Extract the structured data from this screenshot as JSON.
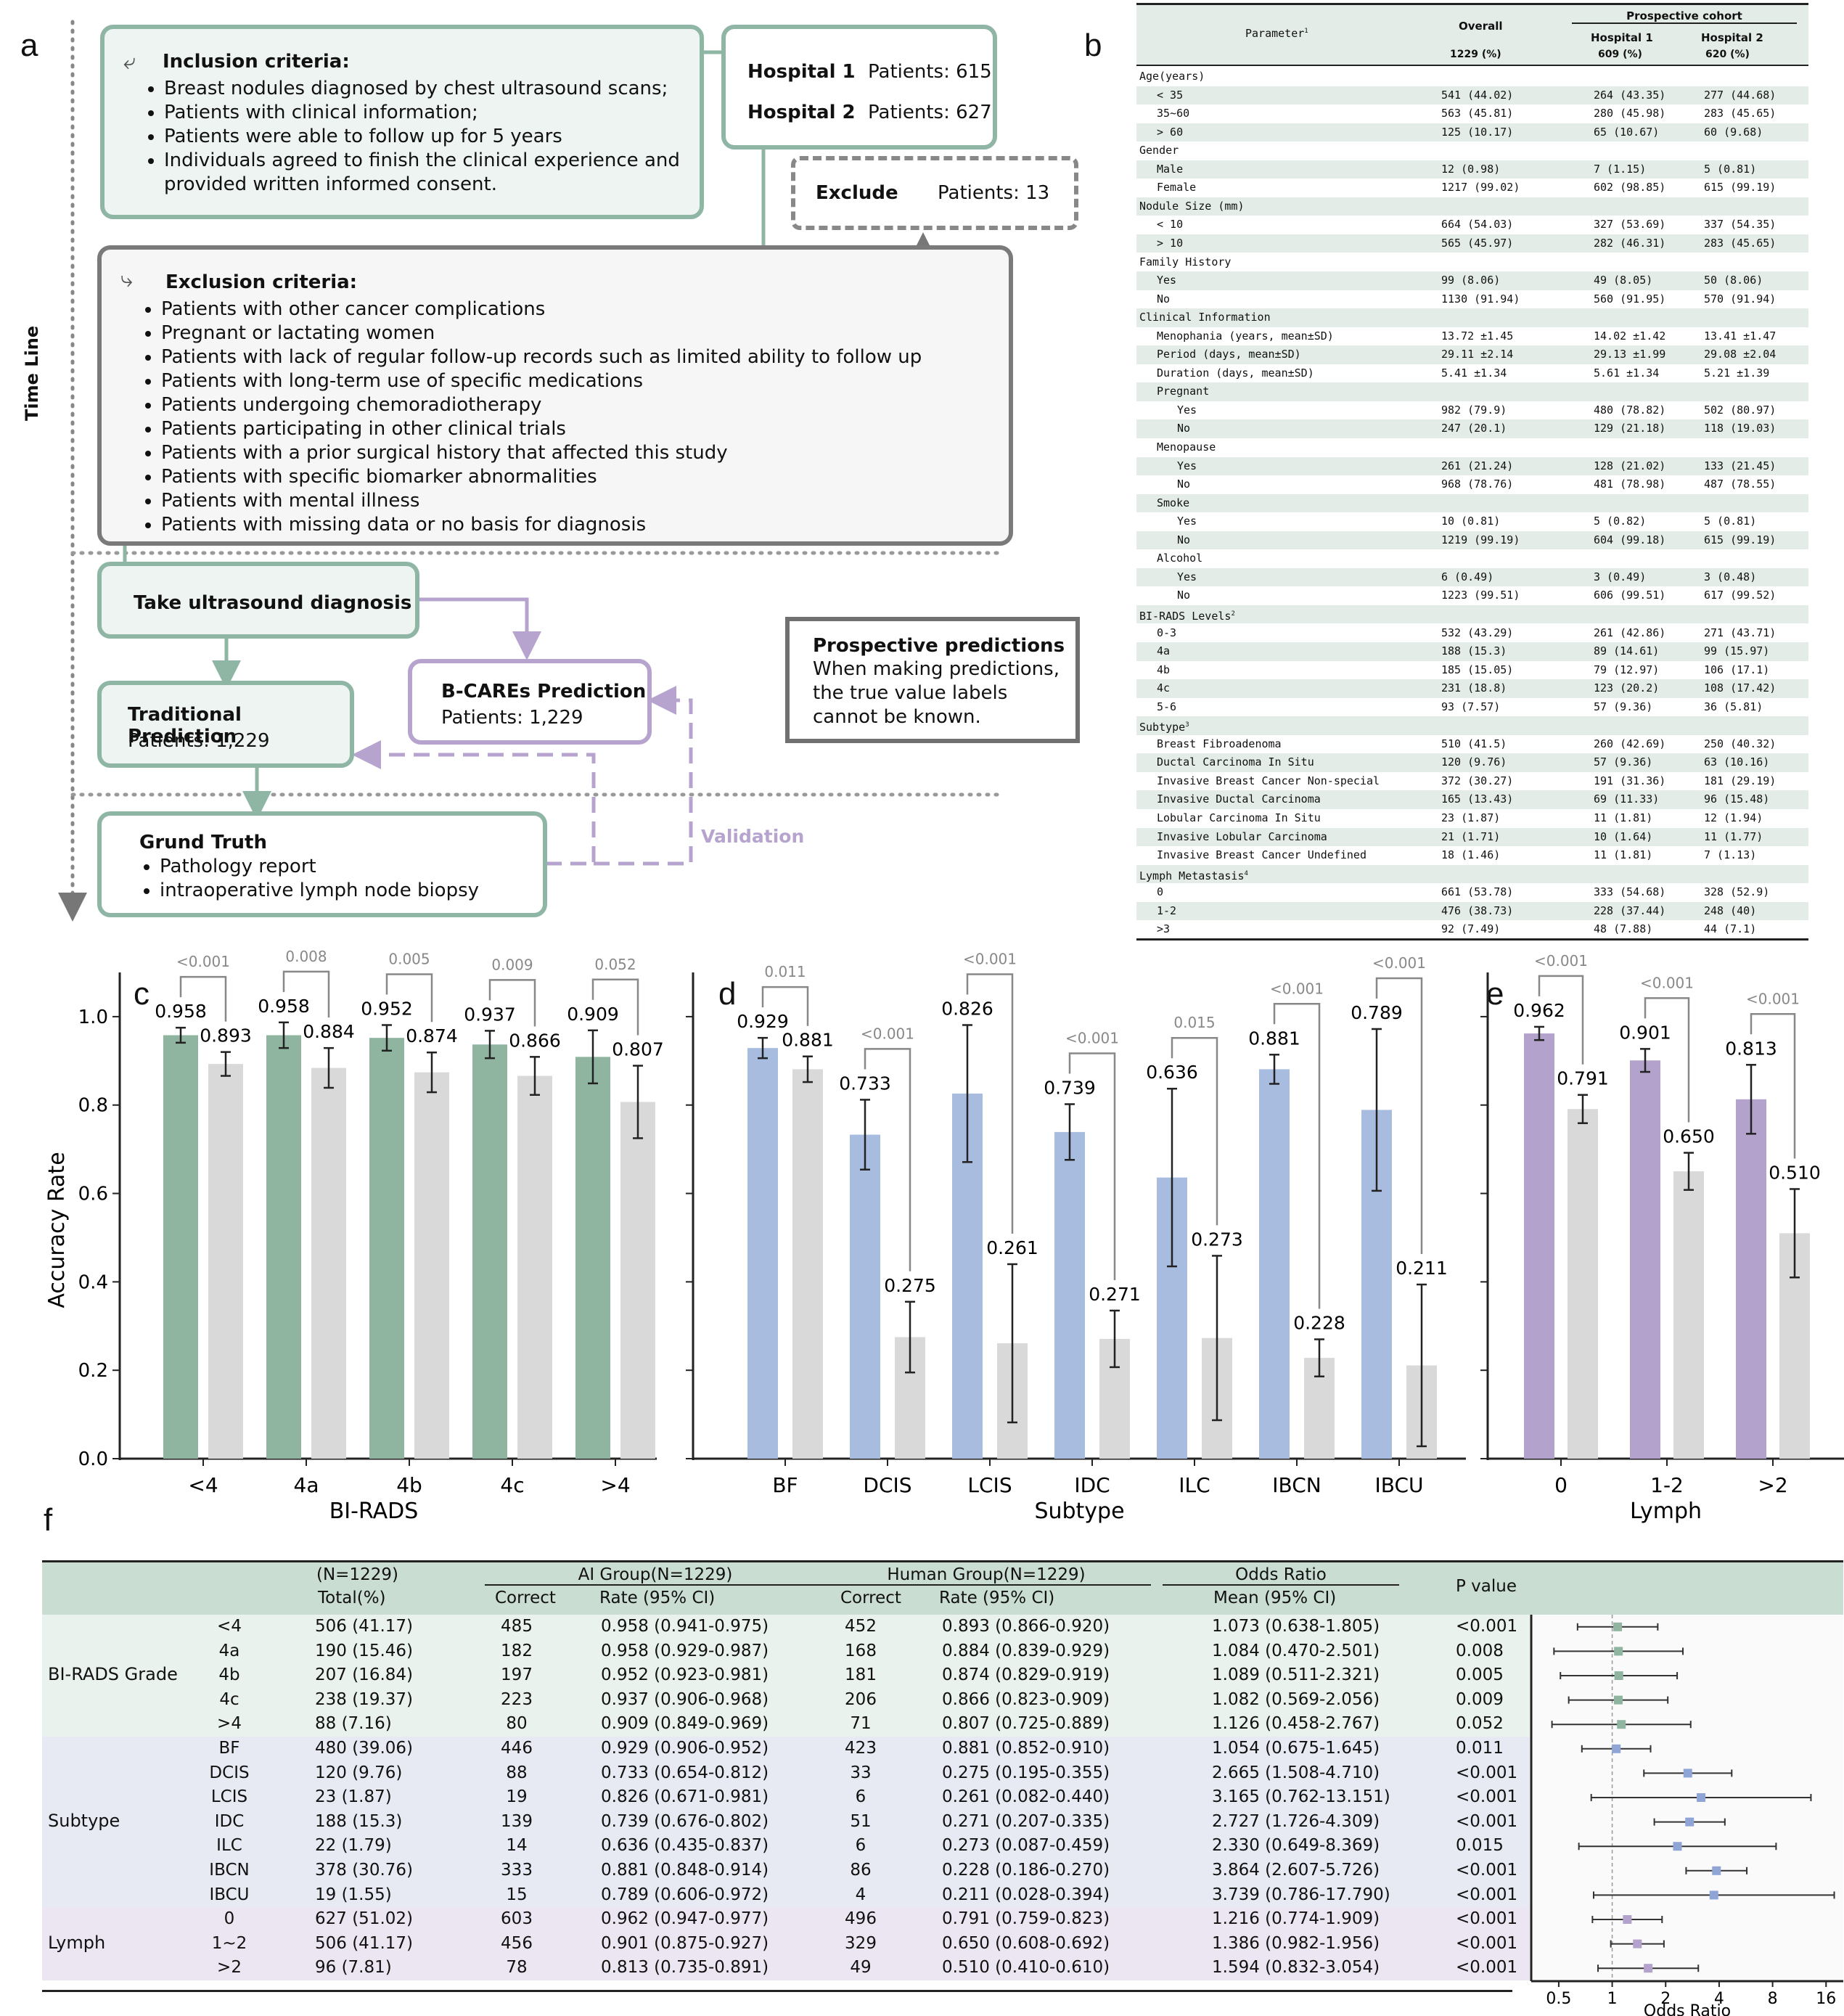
{
  "panels": {
    "a": "a",
    "b": "b",
    "c": "c",
    "d": "d",
    "e": "e",
    "f": "f"
  },
  "flow": {
    "timeline": "Time Line",
    "inclusion_title": "Inclusion criteria:",
    "inclusion": [
      "Breast nodules diagnosed by chest ultrasound scans;",
      "Patients with clinical information;",
      "Patients were able to follow up for 5 years",
      "Individuals agreed to finish the clinical experience and provided written informed consent."
    ],
    "hospital1": "Hospital 1",
    "hospital1_patients": "Patients: 615",
    "hospital2": "Hospital 2",
    "hospital2_patients": "Patients: 627",
    "exclude": "Exclude",
    "exclude_patients": "Patients: 13",
    "exclusion_title": "Exclusion criteria:",
    "exclusion": [
      "Patients with other cancer complications",
      "Pregnant or lactating women",
      "Patients with lack of regular follow-up records such as limited ability to follow up",
      "Patients with long-term use of specific medications",
      "Patients undergoing chemoradiotherapy",
      "Patients participating in other clinical trials",
      "Patients with a prior surgical history that affected this study",
      "Patients with specific biomarker abnormalities",
      "Patients with mental illness",
      "Patients with missing data or no basis for diagnosis"
    ],
    "ultrasound": "Take ultrasound diagnosis",
    "bcares_title": "B-CAREs Prediction",
    "bcares_patients": "Patients: 1,229",
    "trad_title": "Traditional Prediction",
    "trad_patients": "Patients: 1,229",
    "prospective_title": "Prospective predictions",
    "prospective_text": [
      "When making predictions,",
      "the true value labels",
      "cannot be known."
    ],
    "truth_title": "Grund Truth",
    "truth_items": [
      "Pathology report",
      "intraoperative lymph node biopsy"
    ],
    "validation": "Validation"
  },
  "table_b": {
    "h_param": "Parameter",
    "h_param_sup": "1",
    "h_overall": "Overall",
    "h_prosp": "Prospective cohort",
    "h_h1": "Hospital 1",
    "h_h2": "Hospital 2",
    "h_n_overall": "1229  (%)",
    "h_n_h1": "609 (%)",
    "h_n_h2": "620  (%)",
    "rows": [
      {
        "l": "Age(years)",
        "lvl": 0,
        "o": "",
        "a": "",
        "b": ""
      },
      {
        "l": "< 35",
        "lvl": 1,
        "o": "541 (44.02)",
        "a": "264 (43.35)",
        "b": "277 (44.68)"
      },
      {
        "l": "35~60",
        "lvl": 1,
        "o": "563 (45.81)",
        "a": "280 (45.98)",
        "b": "283 (45.65)"
      },
      {
        "l": "> 60",
        "lvl": 1,
        "o": "125 (10.17)",
        "a": "65 (10.67)",
        "b": "60 (9.68)"
      },
      {
        "l": "Gender",
        "lvl": 0,
        "o": "",
        "a": "",
        "b": ""
      },
      {
        "l": "Male",
        "lvl": 1,
        "o": "12 (0.98)",
        "a": "7 (1.15)",
        "b": "5 (0.81)"
      },
      {
        "l": "Female",
        "lvl": 1,
        "o": "1217 (99.02)",
        "a": "602 (98.85)",
        "b": "615 (99.19)"
      },
      {
        "l": "Nodule Size (mm)",
        "lvl": 0,
        "o": "",
        "a": "",
        "b": ""
      },
      {
        "l": "< 10",
        "lvl": 1,
        "o": "664 (54.03)",
        "a": "327 (53.69)",
        "b": "337 (54.35)"
      },
      {
        "l": "> 10",
        "lvl": 1,
        "o": "565 (45.97)",
        "a": "282 (46.31)",
        "b": "283 (45.65)"
      },
      {
        "l": "Family History",
        "lvl": 0,
        "o": "",
        "a": "",
        "b": ""
      },
      {
        "l": "Yes",
        "lvl": 1,
        "o": "99 (8.06)",
        "a": "49 (8.05)",
        "b": "50 (8.06)"
      },
      {
        "l": "No",
        "lvl": 1,
        "o": "1130 (91.94)",
        "a": "560 (91.95)",
        "b": "570 (91.94)"
      },
      {
        "l": "Clinical Information",
        "lvl": 0,
        "o": "",
        "a": "",
        "b": ""
      },
      {
        "l": "Menophania (years, mean±SD)",
        "lvl": 1,
        "o": "13.72 ±1.45",
        "a": "14.02 ±1.42",
        "b": "13.41 ±1.47"
      },
      {
        "l": "Period (days, mean±SD)",
        "lvl": 1,
        "o": "29.11 ±2.14",
        "a": "29.13 ±1.99",
        "b": "29.08 ±2.04"
      },
      {
        "l": "Duration (days, mean±SD)",
        "lvl": 1,
        "o": "5.41 ±1.34",
        "a": "5.61 ±1.34",
        "b": "5.21 ±1.39"
      },
      {
        "l": "Pregnant",
        "lvl": 1,
        "o": "",
        "a": "",
        "b": ""
      },
      {
        "l": "Yes",
        "lvl": 2,
        "o": "982 (79.9)",
        "a": "480 (78.82)",
        "b": "502 (80.97)"
      },
      {
        "l": "No",
        "lvl": 2,
        "o": "247 (20.1)",
        "a": "129 (21.18)",
        "b": "118 (19.03)"
      },
      {
        "l": "Menopause",
        "lvl": 1,
        "o": "",
        "a": "",
        "b": ""
      },
      {
        "l": "Yes",
        "lvl": 2,
        "o": "261 (21.24)",
        "a": "128 (21.02)",
        "b": "133 (21.45)"
      },
      {
        "l": "No",
        "lvl": 2,
        "o": "968 (78.76)",
        "a": "481 (78.98)",
        "b": "487 (78.55)"
      },
      {
        "l": "Smoke",
        "lvl": 1,
        "o": "",
        "a": "",
        "b": ""
      },
      {
        "l": "Yes",
        "lvl": 2,
        "o": "10 (0.81)",
        "a": "5 (0.82)",
        "b": "5 (0.81)"
      },
      {
        "l": "No",
        "lvl": 2,
        "o": "1219 (99.19)",
        "a": "604 (99.18)",
        "b": "615 (99.19)"
      },
      {
        "l": "Alcohol",
        "lvl": 1,
        "o": "",
        "a": "",
        "b": ""
      },
      {
        "l": "Yes",
        "lvl": 2,
        "o": "6 (0.49)",
        "a": "3 (0.49)",
        "b": "3 (0.48)"
      },
      {
        "l": "No",
        "lvl": 2,
        "o": "1223 (99.51)",
        "a": "606 (99.51)",
        "b": "617 (99.52)"
      },
      {
        "l": "BI-RADS Levels",
        "sup": "2",
        "lvl": 0,
        "o": "",
        "a": "",
        "b": ""
      },
      {
        "l": "0-3",
        "lvl": 1,
        "o": "532 (43.29)",
        "a": "261 (42.86)",
        "b": "271 (43.71)"
      },
      {
        "l": "4a",
        "lvl": 1,
        "o": "188 (15.3)",
        "a": "89 (14.61)",
        "b": "99 (15.97)"
      },
      {
        "l": "4b",
        "lvl": 1,
        "o": "185 (15.05)",
        "a": "79 (12.97)",
        "b": "106 (17.1)"
      },
      {
        "l": "4c",
        "lvl": 1,
        "o": "231 (18.8)",
        "a": "123 (20.2)",
        "b": "108 (17.42)"
      },
      {
        "l": "5-6",
        "lvl": 1,
        "o": "93 (7.57)",
        "a": "57 (9.36)",
        "b": "36 (5.81)"
      },
      {
        "l": "Subtype",
        "sup": "3",
        "lvl": 0,
        "o": "",
        "a": "",
        "b": ""
      },
      {
        "l": "Breast Fibroadenoma",
        "lvl": 1,
        "o": "510 (41.5)",
        "a": "260 (42.69)",
        "b": "250 (40.32)"
      },
      {
        "l": "Ductal Carcinoma In Situ",
        "lvl": 1,
        "o": "120 (9.76)",
        "a": "57 (9.36)",
        "b": "63 (10.16)"
      },
      {
        "l": "Invasive Breast Cancer Non-special",
        "lvl": 1,
        "o": "372 (30.27)",
        "a": "191 (31.36)",
        "b": "181 (29.19)"
      },
      {
        "l": "Invasive Ductal Carcinoma",
        "lvl": 1,
        "o": "165 (13.43)",
        "a": "69 (11.33)",
        "b": "96 (15.48)"
      },
      {
        "l": "Lobular Carcinoma In Situ",
        "lvl": 1,
        "o": "23 (1.87)",
        "a": "11 (1.81)",
        "b": "12 (1.94)"
      },
      {
        "l": "Invasive Lobular Carcinoma",
        "lvl": 1,
        "o": "21 (1.71)",
        "a": "10 (1.64)",
        "b": "11 (1.77)"
      },
      {
        "l": "Invasive Breast Cancer Undefined",
        "lvl": 1,
        "o": "18 (1.46)",
        "a": "11 (1.81)",
        "b": "7 (1.13)"
      },
      {
        "l": "Lymph Metastasis",
        "sup": "4",
        "lvl": 0,
        "o": "",
        "a": "",
        "b": ""
      },
      {
        "l": "0",
        "lvl": 1,
        "o": "661 (53.78)",
        "a": "333 (54.68)",
        "b": "328 (52.9)"
      },
      {
        "l": "1-2",
        "lvl": 1,
        "o": "476 (38.73)",
        "a": "228 (37.44)",
        "b": "248 (40)"
      },
      {
        "l": ">3",
        "lvl": 1,
        "o": "92 (7.49)",
        "a": "48 (7.88)",
        "b": "44 (7.1)"
      }
    ]
  },
  "chart_data": [
    {
      "type": "bar",
      "panel": "c",
      "xlabel": "BI-RADS",
      "ylabel": "Accuracy Rate",
      "ylim": [
        0,
        1.1
      ],
      "yticks": [
        "0.0",
        "0.2",
        "0.4",
        "0.6",
        "0.8",
        "1.0"
      ],
      "categories": [
        "<4",
        "4a",
        "4b",
        "4c",
        ">4"
      ],
      "color_ai": "#8fb5a1",
      "color_human": "#d9d9d9",
      "ai": [
        0.958,
        0.958,
        0.952,
        0.937,
        0.909
      ],
      "ai_ci": [
        [
          0.941,
          0.975
        ],
        [
          0.929,
          0.987
        ],
        [
          0.923,
          0.981
        ],
        [
          0.906,
          0.968
        ],
        [
          0.849,
          0.969
        ]
      ],
      "ai_labels": [
        "0.958",
        "0.958",
        "0.952",
        "0.937",
        "0.909"
      ],
      "human": [
        0.893,
        0.884,
        0.874,
        0.866,
        0.807
      ],
      "human_ci": [
        [
          0.866,
          0.92
        ],
        [
          0.839,
          0.929
        ],
        [
          0.829,
          0.919
        ],
        [
          0.823,
          0.909
        ],
        [
          0.725,
          0.889
        ]
      ],
      "human_labels": [
        "0.893",
        "0.884",
        "0.874",
        "0.866",
        "0.807"
      ],
      "pvalues": [
        "<0.001",
        "0.008",
        "0.005",
        "0.009",
        "0.052"
      ]
    },
    {
      "type": "bar",
      "panel": "d",
      "xlabel": "Subtype",
      "ylim": [
        0,
        1.1
      ],
      "categories": [
        "BF",
        "DCIS",
        "LCIS",
        "IDC",
        "ILC",
        "IBCN",
        "IBCU"
      ],
      "color_ai": "#a7bcdf",
      "color_human": "#d9d9d9",
      "ai": [
        0.929,
        0.733,
        0.826,
        0.739,
        0.636,
        0.881,
        0.789
      ],
      "ai_ci": [
        [
          0.906,
          0.952
        ],
        [
          0.654,
          0.812
        ],
        [
          0.671,
          0.981
        ],
        [
          0.676,
          0.802
        ],
        [
          0.435,
          0.837
        ],
        [
          0.848,
          0.914
        ],
        [
          0.606,
          0.972
        ]
      ],
      "ai_labels": [
        "0.929",
        "0.733",
        "0.826",
        "0.739",
        "0.636",
        "0.881",
        "0.789"
      ],
      "human": [
        0.881,
        0.275,
        0.261,
        0.271,
        0.273,
        0.228,
        0.211
      ],
      "human_ci": [
        [
          0.852,
          0.91
        ],
        [
          0.195,
          0.355
        ],
        [
          0.082,
          0.44
        ],
        [
          0.207,
          0.335
        ],
        [
          0.087,
          0.459
        ],
        [
          0.186,
          0.27
        ],
        [
          0.028,
          0.394
        ]
      ],
      "human_labels": [
        "0.881",
        "0.275",
        "0.261",
        "0.271",
        "0.273",
        "0.228",
        "0.211"
      ],
      "pvalues": [
        "0.011",
        "<0.001",
        "<0.001",
        "<0.001",
        "0.015",
        "<0.001",
        "<0.001"
      ]
    },
    {
      "type": "bar",
      "panel": "e",
      "xlabel": "Lymph",
      "ylim": [
        0,
        1.1
      ],
      "categories": [
        "0",
        "1-2",
        ">2"
      ],
      "color_ai": "#b3a3cc",
      "color_human": "#d9d9d9",
      "ai": [
        0.962,
        0.901,
        0.813
      ],
      "ai_ci": [
        [
          0.947,
          0.977
        ],
        [
          0.875,
          0.927
        ],
        [
          0.735,
          0.891
        ]
      ],
      "ai_labels": [
        "0.962",
        "0.901",
        "0.813"
      ],
      "human": [
        0.791,
        0.65,
        0.51
      ],
      "human_ci": [
        [
          0.759,
          0.823
        ],
        [
          0.608,
          0.692
        ],
        [
          0.41,
          0.61
        ]
      ],
      "human_labels": [
        "0.791",
        "0.650",
        "0.510"
      ],
      "pvalues": [
        "<0.001",
        "<0.001",
        "<0.001"
      ]
    }
  ],
  "table_f": {
    "h_n": "(N=1229)",
    "h_total": "Total(%)",
    "h_ai": "AI Group(N=1229)",
    "h_human": "Human Group(N=1229)",
    "h_or": "Odds Ratio",
    "h_p": "P value",
    "h_correct": "Correct",
    "h_rate": "Rate  (95% CI)",
    "h_mean": "Mean  (95% CI)",
    "groups": [
      {
        "name": "BI-RADS Grade",
        "bg": "#eaf2ee",
        "mark": "#8fb5a1",
        "rows": [
          {
            "c": "<4",
            "t": "506 (41.17)",
            "ac": "485",
            "ar": "0.958 (0.941-0.975)",
            "hc": "452",
            "hr": "0.893 (0.866-0.920)",
            "or": "1.073 (0.638-1.805)",
            "p": "<0.001",
            "m": 1.073,
            "lo": 0.638,
            "hi": 1.805
          },
          {
            "c": "4a",
            "t": "190 (15.46)",
            "ac": "182",
            "ar": "0.958 (0.929-0.987)",
            "hc": "168",
            "hr": "0.884 (0.839-0.929)",
            "or": "1.084 (0.470-2.501)",
            "p": "0.008",
            "m": 1.084,
            "lo": 0.47,
            "hi": 2.501
          },
          {
            "c": "4b",
            "t": "207 (16.84)",
            "ac": "197",
            "ar": "0.952 (0.923-0.981)",
            "hc": "181",
            "hr": "0.874 (0.829-0.919)",
            "or": "1.089 (0.511-2.321)",
            "p": "0.005",
            "m": 1.089,
            "lo": 0.511,
            "hi": 2.321
          },
          {
            "c": "4c",
            "t": "238 (19.37)",
            "ac": "223",
            "ar": "0.937 (0.906-0.968)",
            "hc": "206",
            "hr": "0.866 (0.823-0.909)",
            "or": "1.082 (0.569-2.056)",
            "p": "0.009",
            "m": 1.082,
            "lo": 0.569,
            "hi": 2.056
          },
          {
            "c": ">4",
            "t": "88 (7.16)",
            "ac": "80",
            "ar": "0.909 (0.849-0.969)",
            "hc": "71",
            "hr": "0.807 (0.725-0.889)",
            "or": "1.126 (0.458-2.767)",
            "p": "0.052",
            "m": 1.126,
            "lo": 0.458,
            "hi": 2.767
          }
        ]
      },
      {
        "name": "Subtype",
        "bg": "#e7eaf3",
        "mark": "#8ea5d6",
        "rows": [
          {
            "c": "BF",
            "t": "480 (39.06)",
            "ac": "446",
            "ar": "0.929 (0.906-0.952)",
            "hc": "423",
            "hr": "0.881 (0.852-0.910)",
            "or": "1.054 (0.675-1.645)",
            "p": "0.011",
            "m": 1.054,
            "lo": 0.675,
            "hi": 1.645
          },
          {
            "c": "DCIS",
            "t": "120 (9.76)",
            "ac": "88",
            "ar": "0.733 (0.654-0.812)",
            "hc": "33",
            "hr": "0.275 (0.195-0.355)",
            "or": "2.665 (1.508-4.710)",
            "p": "<0.001",
            "m": 2.665,
            "lo": 1.508,
            "hi": 4.71
          },
          {
            "c": "LCIS",
            "t": "23 (1.87)",
            "ac": "19",
            "ar": "0.826 (0.671-0.981)",
            "hc": "6",
            "hr": "0.261 (0.082-0.440)",
            "or": "3.165 (0.762-13.151)",
            "p": "<0.001",
            "m": 3.165,
            "lo": 0.762,
            "hi": 13.151
          },
          {
            "c": "IDC",
            "t": "188 (15.3)",
            "ac": "139",
            "ar": "0.739 (0.676-0.802)",
            "hc": "51",
            "hr": "0.271 (0.207-0.335)",
            "or": "2.727 (1.726-4.309)",
            "p": "<0.001",
            "m": 2.727,
            "lo": 1.726,
            "hi": 4.309
          },
          {
            "c": "ILC",
            "t": "22 (1.79)",
            "ac": "14",
            "ar": "0.636 (0.435-0.837)",
            "hc": "6",
            "hr": "0.273 (0.087-0.459)",
            "or": "2.330 (0.649-8.369)",
            "p": "0.015",
            "m": 2.33,
            "lo": 0.649,
            "hi": 8.369
          },
          {
            "c": "IBCN",
            "t": "378 (30.76)",
            "ac": "333",
            "ar": "0.881 (0.848-0.914)",
            "hc": "86",
            "hr": "0.228 (0.186-0.270)",
            "or": "3.864 (2.607-5.726)",
            "p": "<0.001",
            "m": 3.864,
            "lo": 2.607,
            "hi": 5.726
          },
          {
            "c": "IBCU",
            "t": "19 (1.55)",
            "ac": "15",
            "ar": "0.789 (0.606-0.972)",
            "hc": "4",
            "hr": "0.211 (0.028-0.394)",
            "or": "3.739 (0.786-17.790)",
            "p": "<0.001",
            "m": 3.739,
            "lo": 0.786,
            "hi": 17.79
          }
        ]
      },
      {
        "name": "Lymph",
        "bg": "#ebe6f1",
        "mark": "#b3a3cc",
        "rows": [
          {
            "c": "0",
            "t": "627 (51.02)",
            "ac": "603",
            "ar": "0.962 (0.947-0.977)",
            "hc": "496",
            "hr": "0.791 (0.759-0.823)",
            "or": "1.216 (0.774-1.909)",
            "p": "<0.001",
            "m": 1.216,
            "lo": 0.774,
            "hi": 1.909
          },
          {
            "c": "1~2",
            "t": "506 (41.17)",
            "ac": "456",
            "ar": "0.901 (0.875-0.927)",
            "hc": "329",
            "hr": "0.650 (0.608-0.692)",
            "or": "1.386 (0.982-1.956)",
            "p": "<0.001",
            "m": 1.386,
            "lo": 0.982,
            "hi": 1.956
          },
          {
            "c": ">2",
            "t": "96 (7.81)",
            "ac": "78",
            "ar": "0.813 (0.735-0.891)",
            "hc": "49",
            "hr": "0.510 (0.410-0.610)",
            "or": "1.594 (0.832-3.054)",
            "p": "<0.001",
            "m": 1.594,
            "lo": 0.832,
            "hi": 3.054
          }
        ]
      }
    ],
    "forest": {
      "xlabel": "Odds Ratio",
      "ticks": [
        "0.5",
        "1",
        "2",
        "4",
        "8",
        "16"
      ]
    }
  }
}
